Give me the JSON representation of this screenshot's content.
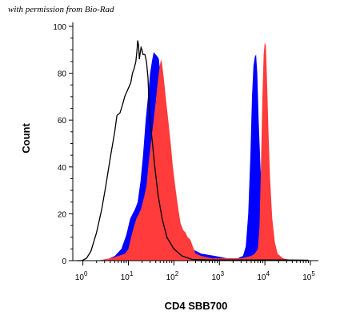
{
  "watermark": "with permission from Bio-Rad",
  "chart_data": {
    "type": "area",
    "title": "",
    "xlabel": "CD4 SBB700",
    "ylabel": "Count",
    "xscale": "log",
    "xlim": [
      0.6,
      150000
    ],
    "ylim": [
      0,
      100
    ],
    "y_ticks": [
      0,
      20,
      40,
      60,
      80,
      100
    ],
    "x_ticks": [
      {
        "value": 1,
        "base": "10",
        "exp": "0"
      },
      {
        "value": 10,
        "base": "10",
        "exp": "1"
      },
      {
        "value": 100,
        "base": "10",
        "exp": "2"
      },
      {
        "value": 1000,
        "base": "10",
        "exp": "3"
      },
      {
        "value": 10000,
        "base": "10",
        "exp": "4"
      },
      {
        "value": 100000,
        "base": "10",
        "exp": "5"
      }
    ],
    "grid": false,
    "legend": "none",
    "series": [
      {
        "style": "outline",
        "color": "#000000",
        "points": [
          [
            0.75,
            0
          ],
          [
            0.95,
            0
          ],
          [
            1.2,
            1
          ],
          [
            1.5,
            4
          ],
          [
            2.0,
            12
          ],
          [
            2.6,
            22
          ],
          [
            3.2,
            32
          ],
          [
            4.0,
            44
          ],
          [
            5.0,
            55
          ],
          [
            5.6,
            62
          ],
          [
            6.5,
            63
          ],
          [
            7.3,
            66
          ],
          [
            8.3,
            70
          ],
          [
            9.2,
            72
          ],
          [
            10.2,
            74
          ],
          [
            11.3,
            76
          ],
          [
            12.3,
            80
          ],
          [
            13.4,
            82
          ],
          [
            14.6,
            85
          ],
          [
            15.5,
            90
          ],
          [
            16.0,
            94
          ],
          [
            16.7,
            92
          ],
          [
            17.4,
            86
          ],
          [
            18.0,
            88
          ],
          [
            19.0,
            91
          ],
          [
            19.8,
            90
          ],
          [
            21.0,
            88
          ],
          [
            23.0,
            88
          ],
          [
            25.0,
            85
          ],
          [
            27.0,
            78
          ],
          [
            28.0,
            70
          ],
          [
            30.0,
            60
          ],
          [
            33.0,
            52
          ],
          [
            38.0,
            40
          ],
          [
            45.0,
            28
          ],
          [
            55.0,
            18
          ],
          [
            70.0,
            10
          ],
          [
            100,
            5
          ],
          [
            150,
            2
          ],
          [
            250,
            0.5
          ],
          [
            600,
            0.3
          ],
          [
            2000,
            0.3
          ],
          [
            10000,
            0.3
          ],
          [
            30000,
            0.3
          ],
          [
            90000,
            0.2
          ]
        ]
      },
      {
        "style": "fill",
        "color": "#0000ff",
        "points": [
          [
            3.0,
            0
          ],
          [
            5.0,
            2
          ],
          [
            7.0,
            5
          ],
          [
            9.0,
            11
          ],
          [
            11.0,
            18
          ],
          [
            14.0,
            22
          ],
          [
            16.0,
            25
          ],
          [
            18.5,
            34
          ],
          [
            21.0,
            45
          ],
          [
            24.0,
            60
          ],
          [
            27.0,
            70
          ],
          [
            30.0,
            80
          ],
          [
            33.5,
            86
          ],
          [
            36.0,
            89
          ],
          [
            40.0,
            88
          ],
          [
            44.0,
            87
          ],
          [
            47.0,
            86
          ],
          [
            50.0,
            80
          ],
          [
            55.0,
            70
          ],
          [
            62.0,
            58
          ],
          [
            70.0,
            45
          ],
          [
            85.0,
            30
          ],
          [
            100,
            22
          ],
          [
            130,
            12
          ],
          [
            170,
            8
          ],
          [
            250,
            5
          ],
          [
            400,
            3
          ],
          [
            800,
            2
          ],
          [
            1500,
            1
          ],
          [
            2500,
            1
          ],
          [
            3300,
            2
          ],
          [
            3800,
            6
          ],
          [
            4300,
            20
          ],
          [
            4800,
            45
          ],
          [
            5200,
            70
          ],
          [
            5600,
            83
          ],
          [
            6000,
            87
          ],
          [
            6400,
            88
          ],
          [
            6800,
            80
          ],
          [
            7300,
            60
          ],
          [
            8000,
            40
          ],
          [
            9000,
            20
          ],
          [
            10500,
            8
          ],
          [
            13000,
            2
          ],
          [
            18000,
            0.5
          ],
          [
            30000,
            0
          ],
          [
            90000,
            0
          ]
        ]
      },
      {
        "style": "fill",
        "color": "#ff3b3b",
        "points": [
          [
            2.0,
            0
          ],
          [
            4.0,
            1
          ],
          [
            6.0,
            2
          ],
          [
            8.5,
            3
          ],
          [
            10.0,
            5
          ],
          [
            11.5,
            10
          ],
          [
            13.0,
            14
          ],
          [
            15.0,
            18
          ],
          [
            17.0,
            20
          ],
          [
            19.0,
            22
          ],
          [
            22.0,
            27
          ],
          [
            25.0,
            32
          ],
          [
            28.0,
            42
          ],
          [
            32.0,
            52
          ],
          [
            36.0,
            60
          ],
          [
            40.0,
            68
          ],
          [
            44.0,
            76
          ],
          [
            48.0,
            82
          ],
          [
            52.0,
            86
          ],
          [
            55.0,
            84
          ],
          [
            60.0,
            78
          ],
          [
            66.0,
            70
          ],
          [
            75.0,
            60
          ],
          [
            85.0,
            50
          ],
          [
            95.0,
            40
          ],
          [
            110,
            30
          ],
          [
            125,
            22
          ],
          [
            140,
            16
          ],
          [
            160,
            13
          ],
          [
            180,
            12
          ],
          [
            200,
            10
          ],
          [
            230,
            9
          ],
          [
            260,
            6
          ],
          [
            300,
            3
          ],
          [
            400,
            2
          ],
          [
            700,
            1
          ],
          [
            1500,
            1
          ],
          [
            3000,
            1
          ],
          [
            5000,
            2
          ],
          [
            6000,
            3
          ],
          [
            7000,
            5
          ],
          [
            7600,
            14
          ],
          [
            8200,
            40
          ],
          [
            8800,
            70
          ],
          [
            9400,
            88
          ],
          [
            9900,
            93
          ],
          [
            10500,
            92
          ],
          [
            11000,
            80
          ],
          [
            12000,
            55
          ],
          [
            13000,
            35
          ],
          [
            14500,
            18
          ],
          [
            16500,
            8
          ],
          [
            19000,
            3
          ],
          [
            25000,
            1
          ],
          [
            32000,
            0.5
          ],
          [
            90000,
            0
          ]
        ]
      }
    ]
  }
}
